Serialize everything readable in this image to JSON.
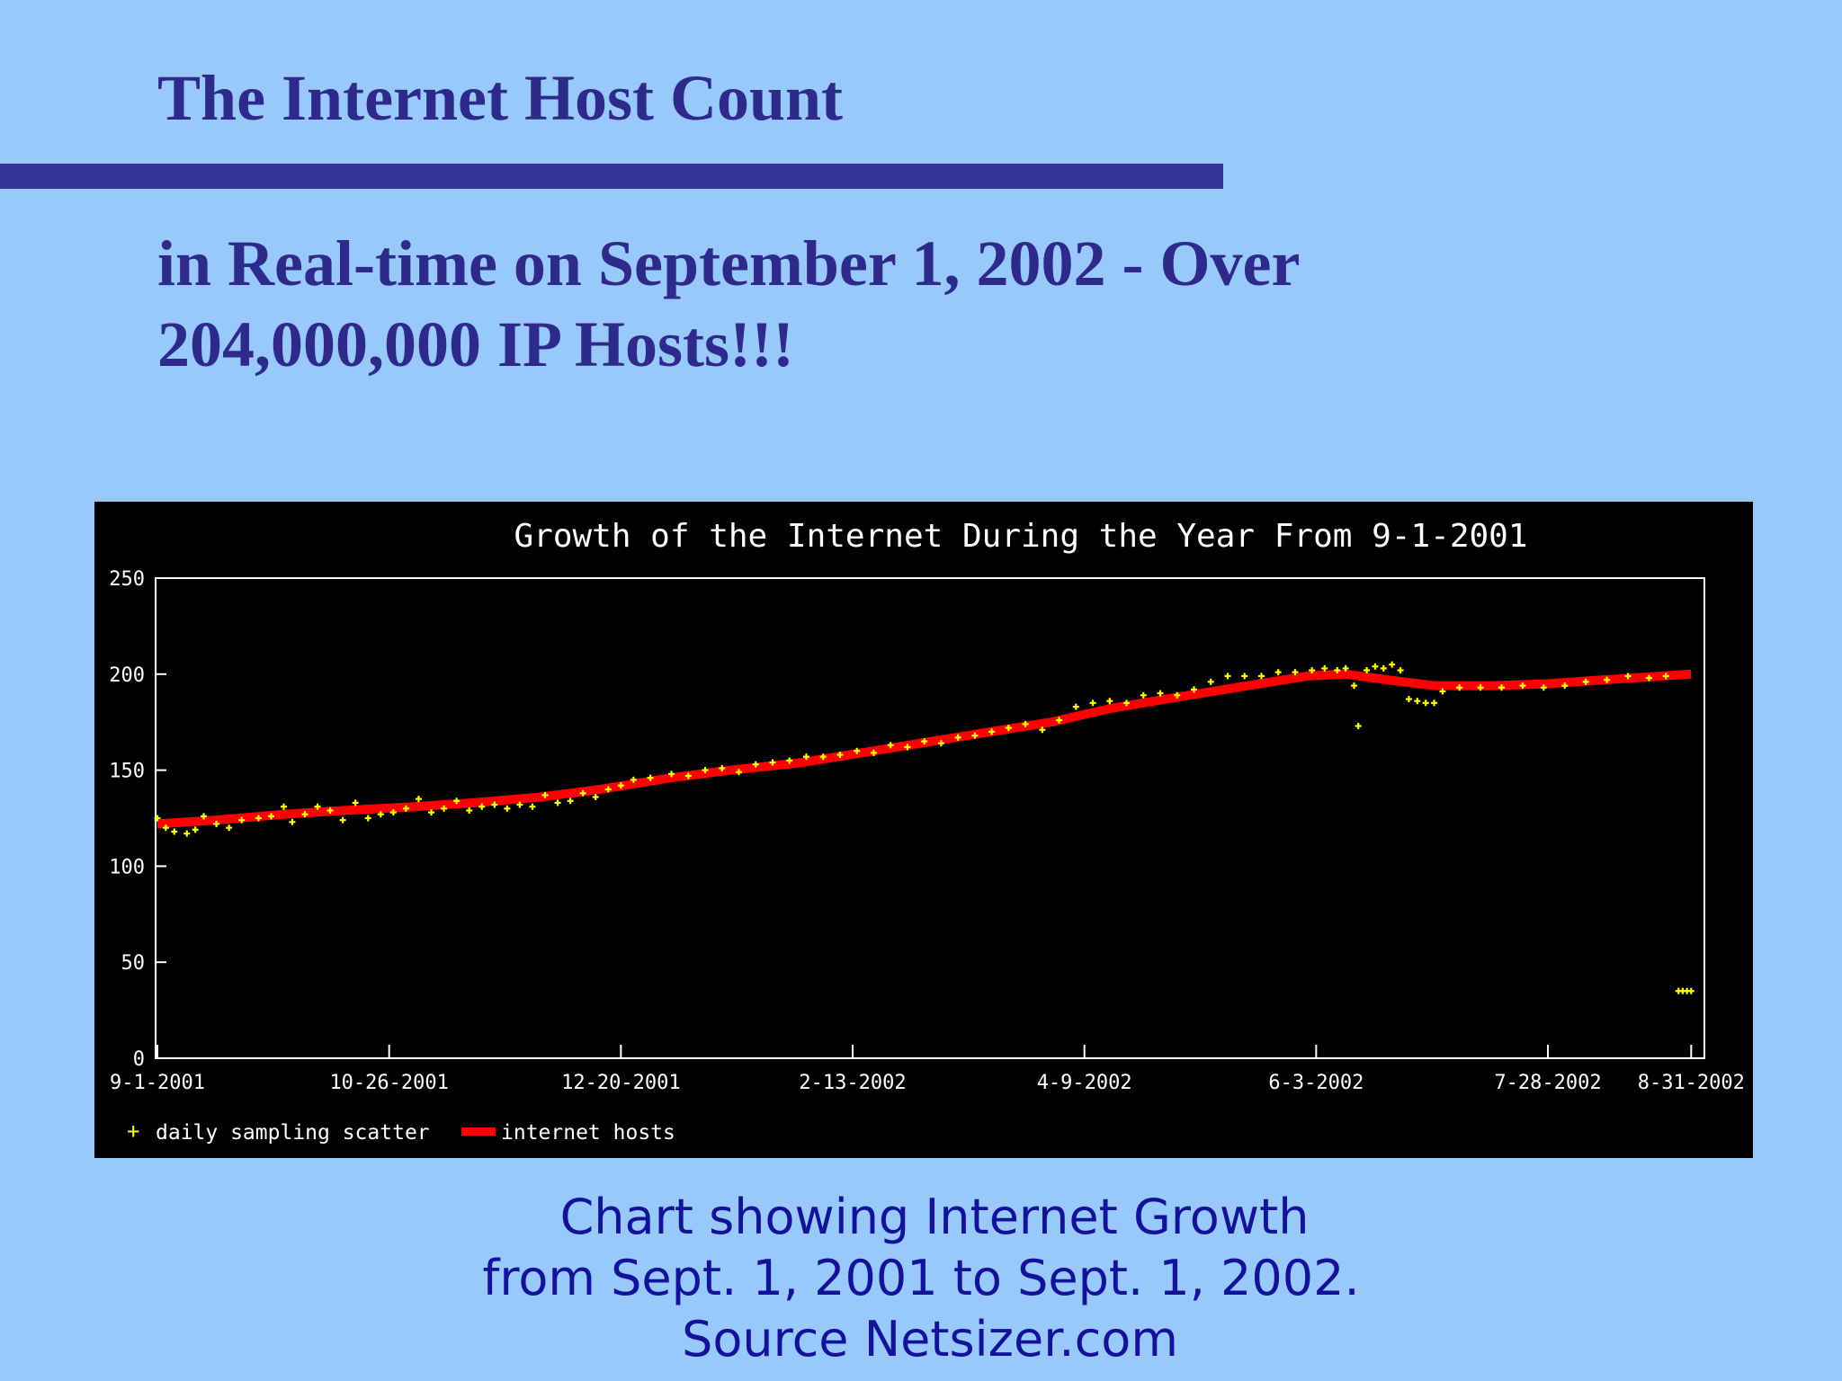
{
  "slide": {
    "title": "The Internet Host Count",
    "subtitle": "in Real-time on September 1, 2002 - Over 204,000,000 IP Hosts!!!",
    "caption_lines": [
      "Chart showing Internet Growth",
      "from Sept. 1, 2001 to Sept. 1, 2002.",
      "Source Netsizer.com"
    ]
  },
  "colors": {
    "background": "#99c9fb",
    "title": "#2e2a8c",
    "rule": "#333399",
    "caption": "#13139a",
    "chart_bg": "#000000",
    "axis": "#ffffff",
    "scatter": "#ffff00",
    "line": "#ff0000"
  },
  "chart_data": {
    "type": "line",
    "title": "Growth of the Internet During the Year From 9-1-2001",
    "xlabel": "",
    "ylabel": "",
    "ylim": [
      0,
      250
    ],
    "xlim": [
      "2001-09-01",
      "2002-09-01"
    ],
    "y_ticks": [
      0,
      50,
      100,
      150,
      200,
      250
    ],
    "x_ticks": [
      {
        "date": "2001-09-01",
        "label": "9-1-2001"
      },
      {
        "date": "2001-10-26",
        "label": "10-26-2001"
      },
      {
        "date": "2001-12-20",
        "label": "12-20-2001"
      },
      {
        "date": "2002-02-13",
        "label": "2-13-2002"
      },
      {
        "date": "2002-04-09",
        "label": "4-9-2002"
      },
      {
        "date": "2002-06-03",
        "label": "6-3-2002"
      },
      {
        "date": "2002-07-28",
        "label": "7-28-2002"
      },
      {
        "date": "2002-08-31",
        "label": "8-31-2002"
      }
    ],
    "legend_position": "bottom-left",
    "series": [
      {
        "name": "daily sampling scatter",
        "kind": "scatter",
        "color": "#ffff00",
        "points": [
          [
            "2001-09-01",
            125
          ],
          [
            "2001-09-03",
            120
          ],
          [
            "2001-09-05",
            118
          ],
          [
            "2001-09-08",
            117
          ],
          [
            "2001-09-10",
            119
          ],
          [
            "2001-09-12",
            126
          ],
          [
            "2001-09-15",
            122
          ],
          [
            "2001-09-18",
            120
          ],
          [
            "2001-09-21",
            124
          ],
          [
            "2001-09-25",
            125
          ],
          [
            "2001-09-28",
            126
          ],
          [
            "2001-10-01",
            131
          ],
          [
            "2001-10-03",
            123
          ],
          [
            "2001-10-06",
            127
          ],
          [
            "2001-10-09",
            131
          ],
          [
            "2001-10-12",
            129
          ],
          [
            "2001-10-15",
            124
          ],
          [
            "2001-10-18",
            133
          ],
          [
            "2001-10-21",
            125
          ],
          [
            "2001-10-24",
            127
          ],
          [
            "2001-10-27",
            128
          ],
          [
            "2001-10-30",
            130
          ],
          [
            "2001-11-02",
            135
          ],
          [
            "2001-11-05",
            128
          ],
          [
            "2001-11-08",
            130
          ],
          [
            "2001-11-11",
            134
          ],
          [
            "2001-11-14",
            129
          ],
          [
            "2001-11-17",
            131
          ],
          [
            "2001-11-20",
            132
          ],
          [
            "2001-11-23",
            130
          ],
          [
            "2001-11-26",
            132
          ],
          [
            "2001-11-29",
            131
          ],
          [
            "2001-12-02",
            137
          ],
          [
            "2001-12-05",
            133
          ],
          [
            "2001-12-08",
            134
          ],
          [
            "2001-12-11",
            138
          ],
          [
            "2001-12-14",
            136
          ],
          [
            "2001-12-17",
            140
          ],
          [
            "2001-12-20",
            142
          ],
          [
            "2001-12-23",
            145
          ],
          [
            "2001-12-27",
            146
          ],
          [
            "2002-01-01",
            148
          ],
          [
            "2002-01-05",
            147
          ],
          [
            "2002-01-09",
            150
          ],
          [
            "2002-01-13",
            151
          ],
          [
            "2002-01-17",
            149
          ],
          [
            "2002-01-21",
            153
          ],
          [
            "2002-01-25",
            154
          ],
          [
            "2002-01-29",
            155
          ],
          [
            "2002-02-02",
            157
          ],
          [
            "2002-02-06",
            157
          ],
          [
            "2002-02-10",
            158
          ],
          [
            "2002-02-14",
            160
          ],
          [
            "2002-02-18",
            159
          ],
          [
            "2002-02-22",
            163
          ],
          [
            "2002-02-26",
            162
          ],
          [
            "2002-03-02",
            165
          ],
          [
            "2002-03-06",
            164
          ],
          [
            "2002-03-10",
            167
          ],
          [
            "2002-03-14",
            168
          ],
          [
            "2002-03-18",
            170
          ],
          [
            "2002-03-22",
            172
          ],
          [
            "2002-03-26",
            174
          ],
          [
            "2002-03-30",
            171
          ],
          [
            "2002-04-03",
            176
          ],
          [
            "2002-04-07",
            183
          ],
          [
            "2002-04-11",
            185
          ],
          [
            "2002-04-15",
            186
          ],
          [
            "2002-04-19",
            185
          ],
          [
            "2002-04-23",
            189
          ],
          [
            "2002-04-27",
            190
          ],
          [
            "2002-05-01",
            189
          ],
          [
            "2002-05-05",
            192
          ],
          [
            "2002-05-09",
            196
          ],
          [
            "2002-05-13",
            199
          ],
          [
            "2002-05-17",
            199
          ],
          [
            "2002-05-21",
            199
          ],
          [
            "2002-05-25",
            201
          ],
          [
            "2002-05-29",
            201
          ],
          [
            "2002-06-02",
            202
          ],
          [
            "2002-06-05",
            203
          ],
          [
            "2002-06-08",
            202
          ],
          [
            "2002-06-10",
            203
          ],
          [
            "2002-06-12",
            194
          ],
          [
            "2002-06-13",
            173
          ],
          [
            "2002-06-15",
            202
          ],
          [
            "2002-06-17",
            204
          ],
          [
            "2002-06-19",
            203
          ],
          [
            "2002-06-21",
            205
          ],
          [
            "2002-06-23",
            202
          ],
          [
            "2002-06-25",
            187
          ],
          [
            "2002-06-27",
            186
          ],
          [
            "2002-06-29",
            185
          ],
          [
            "2002-07-01",
            185
          ],
          [
            "2002-07-03",
            191
          ],
          [
            "2002-07-07",
            193
          ],
          [
            "2002-07-12",
            193
          ],
          [
            "2002-07-17",
            193
          ],
          [
            "2002-07-22",
            194
          ],
          [
            "2002-07-27",
            193
          ],
          [
            "2002-08-01",
            194
          ],
          [
            "2002-08-06",
            196
          ],
          [
            "2002-08-11",
            197
          ],
          [
            "2002-08-16",
            199
          ],
          [
            "2002-08-21",
            198
          ],
          [
            "2002-08-25",
            199
          ],
          [
            "2002-08-28",
            35
          ],
          [
            "2002-08-29",
            35
          ],
          [
            "2002-08-30",
            35
          ],
          [
            "2002-08-31",
            35
          ]
        ]
      },
      {
        "name": "internet hosts",
        "kind": "line",
        "color": "#ff0000",
        "points": [
          [
            "2001-09-01",
            122
          ],
          [
            "2001-09-15",
            124
          ],
          [
            "2001-10-01",
            127
          ],
          [
            "2001-10-15",
            129
          ],
          [
            "2001-11-01",
            131
          ],
          [
            "2001-11-15",
            133
          ],
          [
            "2001-12-01",
            136
          ],
          [
            "2001-12-15",
            140
          ],
          [
            "2002-01-01",
            146
          ],
          [
            "2002-01-15",
            150
          ],
          [
            "2002-02-01",
            154
          ],
          [
            "2002-02-15",
            159
          ],
          [
            "2002-03-01",
            164
          ],
          [
            "2002-03-15",
            169
          ],
          [
            "2002-04-01",
            175
          ],
          [
            "2002-04-15",
            182
          ],
          [
            "2002-05-01",
            188
          ],
          [
            "2002-05-15",
            193
          ],
          [
            "2002-06-01",
            199
          ],
          [
            "2002-06-10",
            200
          ],
          [
            "2002-06-20",
            197
          ],
          [
            "2002-07-01",
            194
          ],
          [
            "2002-07-15",
            194
          ],
          [
            "2002-07-28",
            195
          ],
          [
            "2002-08-10",
            197
          ],
          [
            "2002-08-31",
            200
          ]
        ]
      }
    ]
  }
}
